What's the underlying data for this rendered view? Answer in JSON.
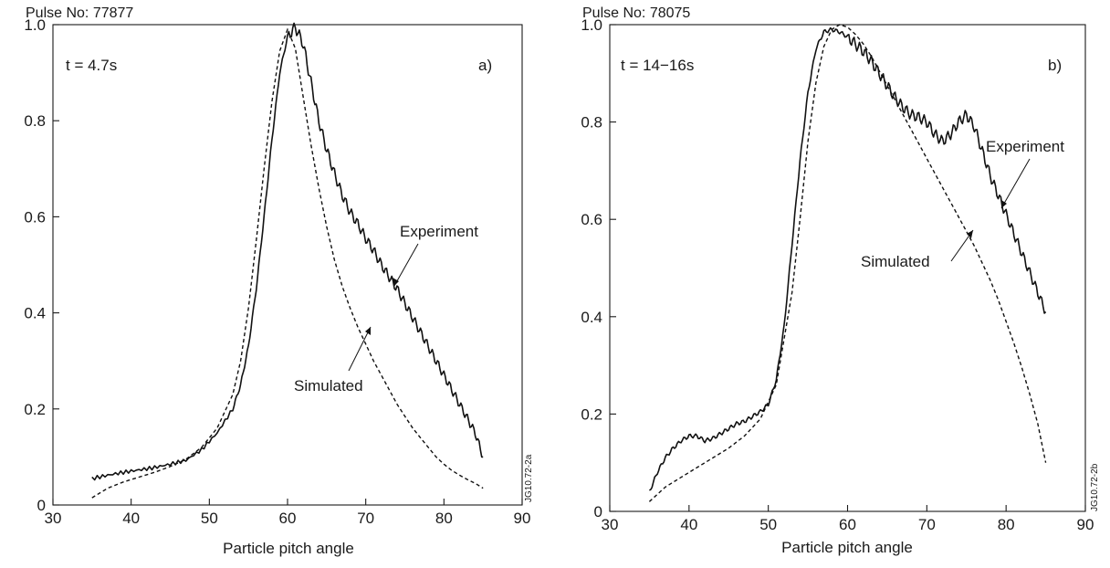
{
  "chart_data": [
    {
      "type": "line",
      "pulse_label": "Pulse No: 77877",
      "time_label": "t = 4.7s",
      "panel_label": "a)",
      "code_label": "JG10.72-2a",
      "xlabel": "Particle pitch angle",
      "ylabel": "",
      "xlim": [
        30,
        90
      ],
      "ylim": [
        0,
        1.0
      ],
      "xticks": [
        30,
        40,
        50,
        60,
        70,
        80,
        90
      ],
      "yticks": [
        0,
        0.2,
        0.4,
        0.6,
        0.8,
        1.0
      ],
      "ytick_labels": [
        "0",
        "0.2",
        "0.4",
        "0.6",
        "0.8",
        "1.0"
      ],
      "series": [
        {
          "name": "Experiment",
          "style": "solid",
          "x": [
            35,
            37,
            39,
            41,
            43,
            45,
            47,
            49,
            51,
            53,
            54,
            55,
            56,
            57,
            58,
            59,
            60,
            61,
            62,
            63,
            64,
            65,
            66,
            67,
            68,
            69,
            70,
            71,
            72,
            73,
            74,
            75,
            76,
            77,
            78,
            79,
            80,
            81,
            82,
            83,
            84,
            85
          ],
          "y": [
            0.055,
            0.062,
            0.068,
            0.073,
            0.078,
            0.085,
            0.093,
            0.115,
            0.15,
            0.2,
            0.25,
            0.33,
            0.45,
            0.6,
            0.76,
            0.9,
            0.975,
            0.995,
            0.96,
            0.88,
            0.8,
            0.74,
            0.69,
            0.645,
            0.61,
            0.585,
            0.555,
            0.53,
            0.5,
            0.475,
            0.45,
            0.42,
            0.39,
            0.36,
            0.33,
            0.3,
            0.27,
            0.24,
            0.21,
            0.18,
            0.15,
            0.1
          ]
        },
        {
          "name": "Simulated",
          "style": "dashed",
          "x": [
            35,
            37,
            39,
            41,
            43,
            45,
            47,
            49,
            51,
            53,
            54,
            55,
            56,
            57,
            58,
            59,
            60,
            61,
            62,
            63,
            64,
            65,
            66,
            67,
            68,
            69,
            70,
            71,
            72,
            73,
            74,
            75,
            76,
            77,
            78,
            79,
            80,
            81,
            82,
            83,
            84,
            85
          ],
          "y": [
            0.015,
            0.035,
            0.048,
            0.058,
            0.068,
            0.08,
            0.095,
            0.12,
            0.16,
            0.23,
            0.3,
            0.41,
            0.55,
            0.7,
            0.84,
            0.945,
            0.99,
            0.95,
            0.85,
            0.75,
            0.66,
            0.58,
            0.51,
            0.455,
            0.41,
            0.37,
            0.335,
            0.3,
            0.27,
            0.24,
            0.21,
            0.185,
            0.16,
            0.14,
            0.12,
            0.1,
            0.085,
            0.072,
            0.062,
            0.053,
            0.045,
            0.035
          ]
        }
      ]
    },
    {
      "type": "line",
      "pulse_label": "Pulse No: 78075",
      "time_label": "t = 14−16s",
      "panel_label": "b)",
      "code_label": "JG10.72-2b",
      "xlabel": "Particle pitch angle",
      "ylabel": "",
      "xlim": [
        30,
        90
      ],
      "ylim": [
        0,
        1.0
      ],
      "xticks": [
        30,
        40,
        50,
        60,
        70,
        80,
        90
      ],
      "yticks": [
        0,
        0.2,
        0.4,
        0.6,
        0.8,
        1.0
      ],
      "ytick_labels": [
        "0",
        "0.2",
        "0.4",
        "0.6",
        "0.8",
        "1.0"
      ],
      "series": [
        {
          "name": "Experiment",
          "style": "solid",
          "x": [
            35,
            36,
            37,
            38,
            39,
            40,
            41,
            42,
            43,
            44,
            45,
            46,
            47,
            48,
            49,
            50,
            51,
            52,
            53,
            54,
            55,
            56,
            57,
            58,
            59,
            60,
            61,
            62,
            63,
            64,
            65,
            66,
            67,
            68,
            69,
            70,
            71,
            72,
            73,
            74,
            75,
            76,
            77,
            78,
            79,
            80,
            81,
            82,
            83,
            84,
            85
          ],
          "y": [
            0.04,
            0.08,
            0.11,
            0.13,
            0.145,
            0.155,
            0.155,
            0.145,
            0.15,
            0.16,
            0.17,
            0.18,
            0.185,
            0.195,
            0.205,
            0.22,
            0.27,
            0.38,
            0.55,
            0.72,
            0.86,
            0.95,
            0.985,
            0.99,
            0.985,
            0.975,
            0.96,
            0.945,
            0.925,
            0.9,
            0.875,
            0.85,
            0.83,
            0.815,
            0.81,
            0.8,
            0.775,
            0.76,
            0.775,
            0.8,
            0.815,
            0.79,
            0.74,
            0.69,
            0.65,
            0.61,
            0.57,
            0.53,
            0.49,
            0.45,
            0.41
          ]
        },
        {
          "name": "Simulated",
          "style": "dashed",
          "x": [
            35,
            37,
            39,
            41,
            43,
            45,
            47,
            49,
            51,
            53,
            54,
            55,
            56,
            57,
            58,
            59,
            60,
            61,
            62,
            63,
            64,
            65,
            66,
            67,
            68,
            69,
            70,
            71,
            72,
            73,
            74,
            75,
            76,
            77,
            78,
            79,
            80,
            81,
            82,
            83,
            84,
            85
          ],
          "y": [
            0.02,
            0.05,
            0.07,
            0.09,
            0.11,
            0.13,
            0.155,
            0.19,
            0.26,
            0.45,
            0.6,
            0.76,
            0.88,
            0.955,
            0.99,
            1.0,
            0.995,
            0.98,
            0.96,
            0.935,
            0.905,
            0.875,
            0.845,
            0.815,
            0.785,
            0.755,
            0.725,
            0.695,
            0.665,
            0.635,
            0.605,
            0.575,
            0.545,
            0.51,
            0.475,
            0.435,
            0.39,
            0.345,
            0.295,
            0.24,
            0.18,
            0.1
          ]
        }
      ]
    }
  ],
  "annotations": [
    {
      "text": "Experiment"
    },
    {
      "text": "Simulated"
    },
    {
      "text": "Experiment"
    },
    {
      "text": "Simulated"
    }
  ]
}
